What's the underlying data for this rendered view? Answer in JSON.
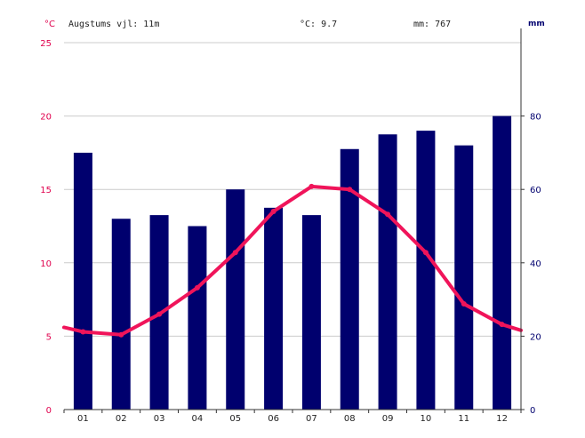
{
  "header": {
    "temp_unit": "°C",
    "precip_unit": "mm",
    "altitude_text": "Augstums vjl: 11m",
    "avg_temp_text": "°C: 9.7",
    "avg_precip_text": "mm: 767"
  },
  "colors": {
    "bars": "#00006e",
    "line": "#f0145a",
    "temp_axis": "#e0004d",
    "precip_axis": "#00006e",
    "grid": "#cccccc"
  },
  "chart_data": {
    "type": "bar",
    "categories": [
      "01",
      "02",
      "03",
      "04",
      "05",
      "06",
      "07",
      "08",
      "09",
      "10",
      "11",
      "12"
    ],
    "series": [
      {
        "values": [
          70,
          52,
          53,
          50,
          60,
          55,
          53,
          71,
          75,
          76,
          72,
          80
        ],
        "axis": "right",
        "kind": "bar"
      },
      {
        "values": [
          5.3,
          5.1,
          6.5,
          8.3,
          10.7,
          13.5,
          15.2,
          15.0,
          13.3,
          10.7,
          7.2,
          5.8
        ],
        "axis": "left",
        "kind": "line"
      }
    ],
    "temp_axis": {
      "ylim": [
        0,
        25
      ],
      "ticks": [
        0,
        5,
        10,
        15,
        20,
        25
      ]
    },
    "precip_axis": {
      "ylim": [
        0,
        100
      ],
      "ticks": [
        0,
        20,
        40,
        60,
        80
      ]
    },
    "line_edges": [
      5.6,
      5.4
    ],
    "grid": true
  }
}
